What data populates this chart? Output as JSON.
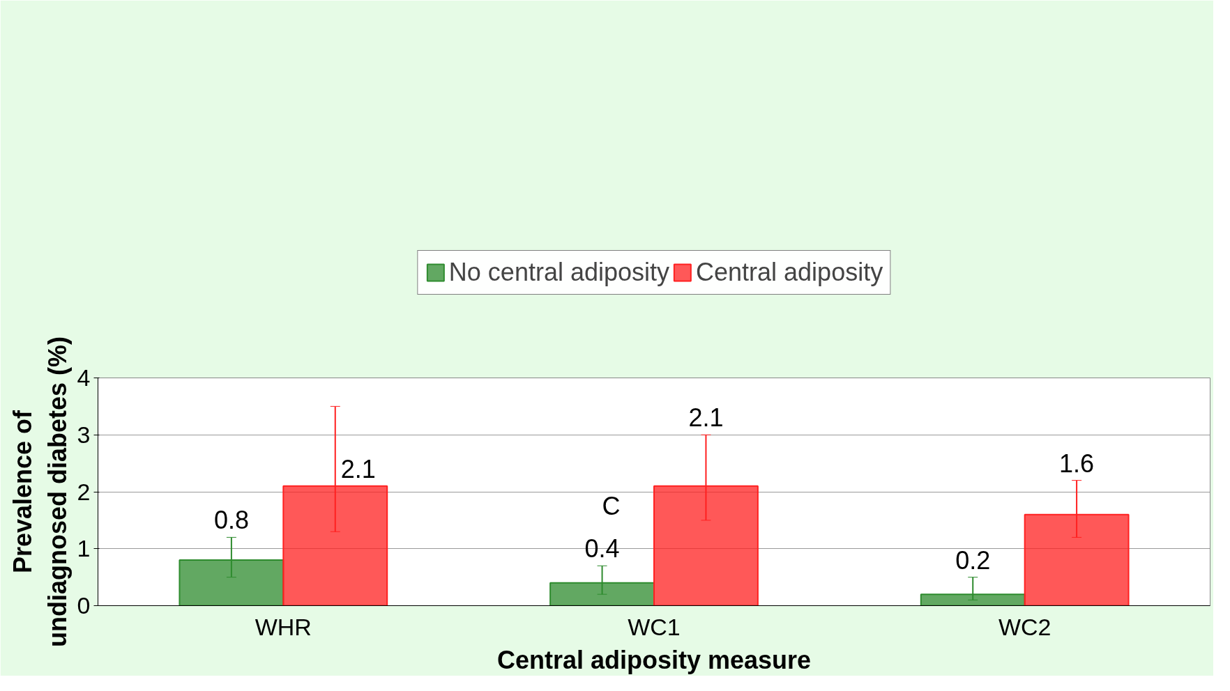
{
  "chart_data": {
    "type": "bar",
    "xlabel": "Central adiposity measure",
    "ylabel": "Prevalence of undiagnosed diabetes (%)",
    "categories": [
      "WHR",
      "WC1",
      "WC2"
    ],
    "series": [
      {
        "name": "No central adiposity",
        "color": "#2e8b2e",
        "values": [
          0.8,
          0.4,
          0.2
        ],
        "errors": [
          [
            0.5,
            1.2
          ],
          [
            0.2,
            0.7
          ],
          [
            0.1,
            0.5
          ]
        ]
      },
      {
        "name": "Central adiposity",
        "color": "#ff2020",
        "values": [
          2.1,
          2.1,
          1.6
        ],
        "errors": [
          [
            1.3,
            3.5
          ],
          [
            1.5,
            3.0
          ],
          [
            1.2,
            2.2
          ]
        ]
      }
    ],
    "ylim": [
      0,
      4
    ],
    "yticks": [
      0,
      1,
      2,
      3,
      4
    ],
    "grid": "y",
    "legend": "top",
    "data_labels": true,
    "annotations": [
      {
        "text": "C",
        "x": "WC1",
        "y": 1.5
      }
    ]
  }
}
